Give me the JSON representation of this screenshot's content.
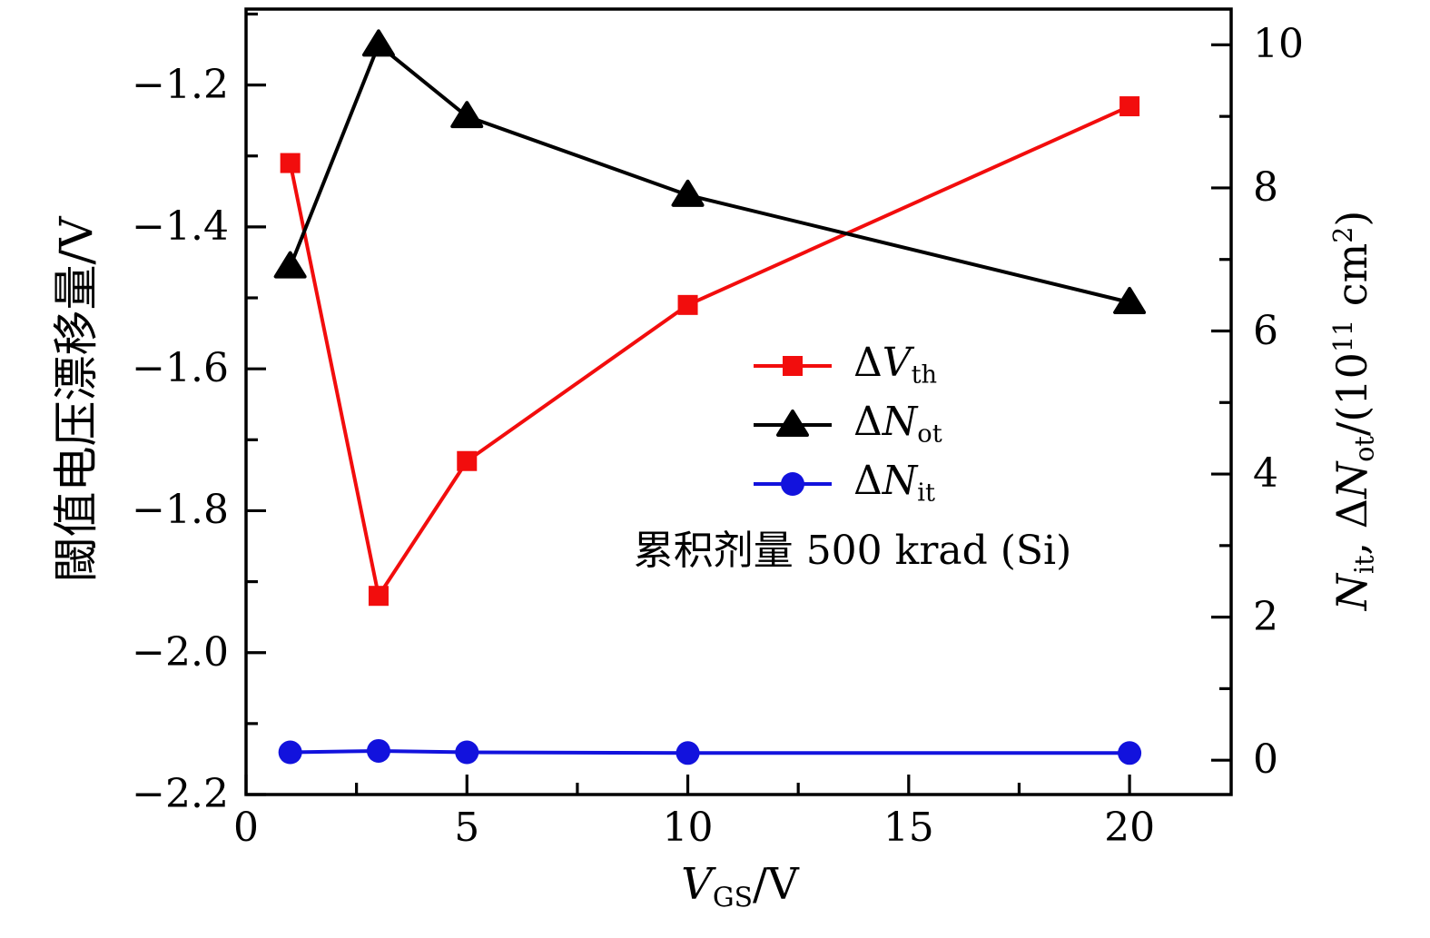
{
  "chart_data": {
    "type": "line",
    "x": [
      1,
      3,
      5,
      10,
      20
    ],
    "xlim": [
      0,
      22.3
    ],
    "ylim_left": [
      -2.2,
      -1.093
    ],
    "ylim_right": [
      -0.48,
      10.5
    ],
    "grid": false,
    "legend_position": "center-right-inside",
    "series": [
      {
        "key": "dvth",
        "name": "ΔV_th",
        "axis": "left",
        "color": "#f20d0d",
        "marker": "square",
        "values": [
          -1.31,
          -1.92,
          -1.73,
          -1.51,
          -1.23
        ],
        "label_segments": [
          {
            "t": "Δ"
          },
          {
            "t": "V",
            "i": true
          },
          {
            "t": "th",
            "sub": true
          }
        ]
      },
      {
        "key": "dnot",
        "name": "ΔN_ot",
        "axis": "right",
        "color": "#000000",
        "marker": "triangle",
        "values": [
          6.9,
          10.0,
          9.0,
          7.9,
          6.4
        ],
        "label_segments": [
          {
            "t": "Δ"
          },
          {
            "t": "N",
            "i": true
          },
          {
            "t": "ot",
            "sub": true
          }
        ]
      },
      {
        "key": "dnit",
        "name": "ΔN_it",
        "axis": "right",
        "color": "#1212dd",
        "marker": "circle",
        "values": [
          0.11,
          0.13,
          0.11,
          0.1,
          0.1
        ],
        "label_segments": [
          {
            "t": "Δ"
          },
          {
            "t": "N",
            "i": true
          },
          {
            "t": "it",
            "sub": true
          }
        ]
      }
    ],
    "x_axis": {
      "label_text": "V_GS/V",
      "label_segments": [
        {
          "t": "V",
          "i": true
        },
        {
          "t": "GS",
          "sub": true
        },
        {
          "t": "/V"
        }
      ],
      "tick_values": [
        0,
        5,
        10,
        15,
        20
      ],
      "tick_labels": [
        "0",
        "5",
        "10",
        "15",
        "20"
      ],
      "minor_tick_values": [
        2.5,
        7.5,
        12.5,
        17.5
      ]
    },
    "y_left_axis": {
      "label": "閾值电压漂移量/V",
      "tick_values": [
        -1.2,
        -1.4,
        -1.6,
        -1.8,
        -2.0,
        -2.2
      ],
      "tick_labels": [
        "−1.2",
        "−1.4",
        "−1.6",
        "−1.8",
        "−2.0",
        "−2.2"
      ],
      "minor_tick_values": [
        -1.1,
        -1.3,
        -1.5,
        -1.7,
        -1.9,
        -2.1
      ]
    },
    "y_right_axis": {
      "label_text": "N_it, ΔN_ot/(10^11 cm^2)",
      "label_segments": [
        {
          "t": "N",
          "i": true
        },
        {
          "t": "it",
          "sub": true
        },
        {
          "t": ", Δ"
        },
        {
          "t": "N",
          "i": true
        },
        {
          "t": "ot",
          "sub": true
        },
        {
          "t": "/(10"
        },
        {
          "t": "11",
          "sup": true
        },
        {
          "t": " cm"
        },
        {
          "t": "2",
          "sup": true
        },
        {
          "t": ")"
        }
      ],
      "tick_values": [
        0,
        2,
        4,
        6,
        8,
        10
      ],
      "tick_labels": [
        "0",
        "2",
        "4",
        "6",
        "8",
        "10"
      ],
      "minor_tick_values": [
        1,
        3,
        5,
        7,
        9
      ]
    },
    "annotation": "累积剂量 500 krad (Si)"
  }
}
